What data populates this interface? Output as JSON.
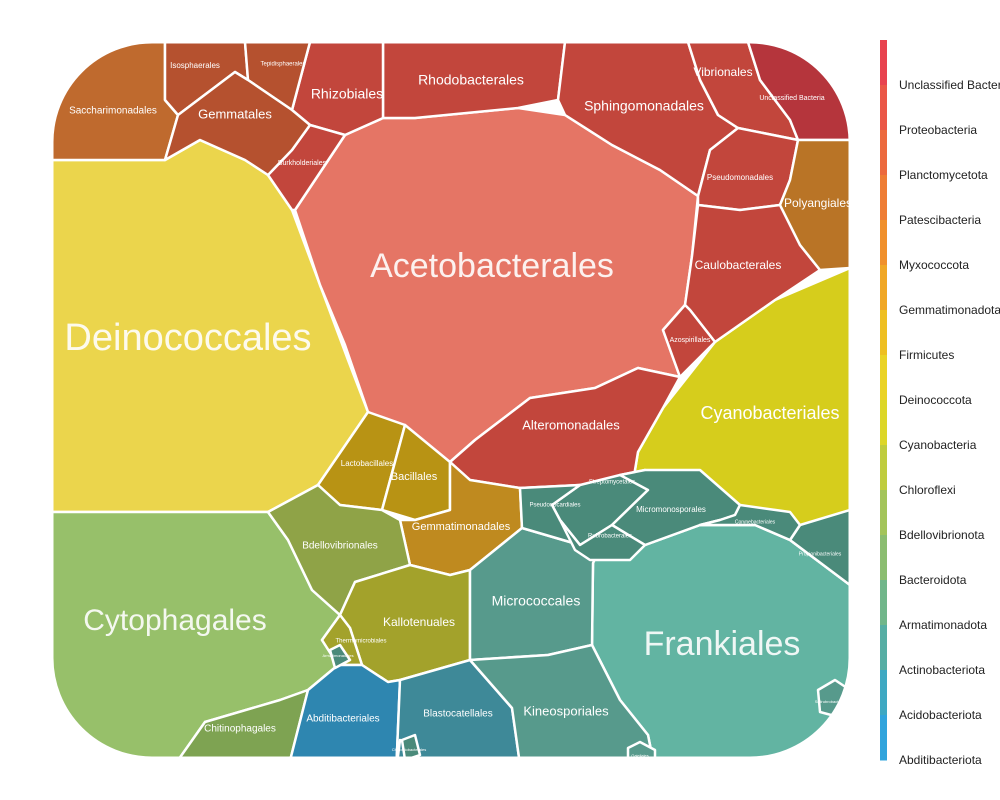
{
  "chart_data": {
    "type": "voronoi-treemap",
    "cells": [
      {
        "label": "Deinococcales",
        "phylum": "Deinococcota"
      },
      {
        "label": "Acetobacterales",
        "phylum": "Proteobacteria"
      },
      {
        "label": "Frankiales",
        "phylum": "Actinobacteriota"
      },
      {
        "label": "Cytophagales",
        "phylum": "Bacteroidota"
      },
      {
        "label": "Cyanobacteriales",
        "phylum": "Cyanobacteria"
      },
      {
        "label": "Rhodobacterales",
        "phylum": "Proteobacteria"
      },
      {
        "label": "Sphingomonadales",
        "phylum": "Proteobacteria"
      },
      {
        "label": "Vibrionales",
        "phylum": "Proteobacteria"
      },
      {
        "label": "Unclassified Bacteria",
        "phylum": "Unclassified Bacteria"
      },
      {
        "label": "Rhizobiales",
        "phylum": "Proteobacteria"
      },
      {
        "label": "Burkholderiales",
        "phylum": "Proteobacteria"
      },
      {
        "label": "Pseudomonadales",
        "phylum": "Proteobacteria"
      },
      {
        "label": "Caulobacterales",
        "phylum": "Proteobacteria"
      },
      {
        "label": "Azospirillales",
        "phylum": "Proteobacteria"
      },
      {
        "label": "Alteromonadales",
        "phylum": "Proteobacteria"
      },
      {
        "label": "Polyangiales",
        "phylum": "Myxococcota"
      },
      {
        "label": "Saccharimonadales",
        "phylum": "Patescibacteria"
      },
      {
        "label": "Isosphaerales",
        "phylum": "Planctomycetota"
      },
      {
        "label": "Tepidisphaerales",
        "phylum": "Planctomycetota"
      },
      {
        "label": "Gemmatales",
        "phylum": "Planctomycetota"
      },
      {
        "label": "Lactobacillales",
        "phylum": "Firmicutes"
      },
      {
        "label": "Bacillales",
        "phylum": "Firmicutes"
      },
      {
        "label": "Gemmatimonadales",
        "phylum": "Gemmatimonadota"
      },
      {
        "label": "Bdellovibrionales",
        "phylum": "Bdellovibrionota"
      },
      {
        "label": "Kallotenuales",
        "phylum": "Chloroflexi"
      },
      {
        "label": "Thermomicrobiales",
        "phylum": "Chloroflexi"
      },
      {
        "label": "Chitinophagales",
        "phylum": "Bacteroidota"
      },
      {
        "label": "Abditibacteriales",
        "phylum": "Abditibacteriota"
      },
      {
        "label": "Blastocatellales",
        "phylum": "Acidobacteriota"
      },
      {
        "label": "Vicinamibacterales",
        "phylum": "Acidobacteriota"
      },
      {
        "label": "Micrococcales",
        "phylum": "Actinobacteriota"
      },
      {
        "label": "Kineosporiales",
        "phylum": "Actinobacteriota"
      },
      {
        "label": "Streptomycetales",
        "phylum": "Actinobacteriota"
      },
      {
        "label": "Pseudonocardiales",
        "phylum": "Actinobacteriota"
      },
      {
        "label": "Micromonosporales",
        "phylum": "Actinobacteriota"
      },
      {
        "label": "Rubrobacterales",
        "phylum": "Actinobacteriota"
      },
      {
        "label": "Propionibacteriales",
        "phylum": "Actinobacteriota"
      },
      {
        "label": "Corynebacteriales",
        "phylum": "Actinobacteriota"
      },
      {
        "label": "Solirubrobacterales",
        "phylum": "Actinobacteriota"
      },
      {
        "label": "Gaiellales",
        "phylum": "Actinobacteriota"
      },
      {
        "label": "Armatimonadales",
        "phylum": "Armatimonadota"
      },
      {
        "label": "Chthoniobacterales",
        "phylum": "Armatimonadota"
      }
    ],
    "legend": [
      {
        "label": "Unclassified Bacteria",
        "color": "#e8434f"
      },
      {
        "label": "Proteobacteria",
        "color": "#ea5747"
      },
      {
        "label": "Planctomycetota",
        "color": "#ec6a3e"
      },
      {
        "label": "Patescibacteria",
        "color": "#ee7d35"
      },
      {
        "label": "Myxococcota",
        "color": "#f0902c"
      },
      {
        "label": "Gemmatimonadota",
        "color": "#f0a726"
      },
      {
        "label": "Firmicutes",
        "color": "#eebf22"
      },
      {
        "label": "Deinococcota",
        "color": "#ead326"
      },
      {
        "label": "Cyanobacteria",
        "color": "#dcd628"
      },
      {
        "label": "Chloroflexi",
        "color": "#bfcc3e"
      },
      {
        "label": "Bdellovibrionota",
        "color": "#a3c45a"
      },
      {
        "label": "Bacteroidota",
        "color": "#8bbd70"
      },
      {
        "label": "Armatimonadota",
        "color": "#70b68a"
      },
      {
        "label": "Actinobacteriota",
        "color": "#56aea4"
      },
      {
        "label": "Acidobacteriota",
        "color": "#3ea8c2"
      },
      {
        "label": "Abditibacteriota",
        "color": "#31a4dc"
      }
    ],
    "legend_position": "right"
  }
}
